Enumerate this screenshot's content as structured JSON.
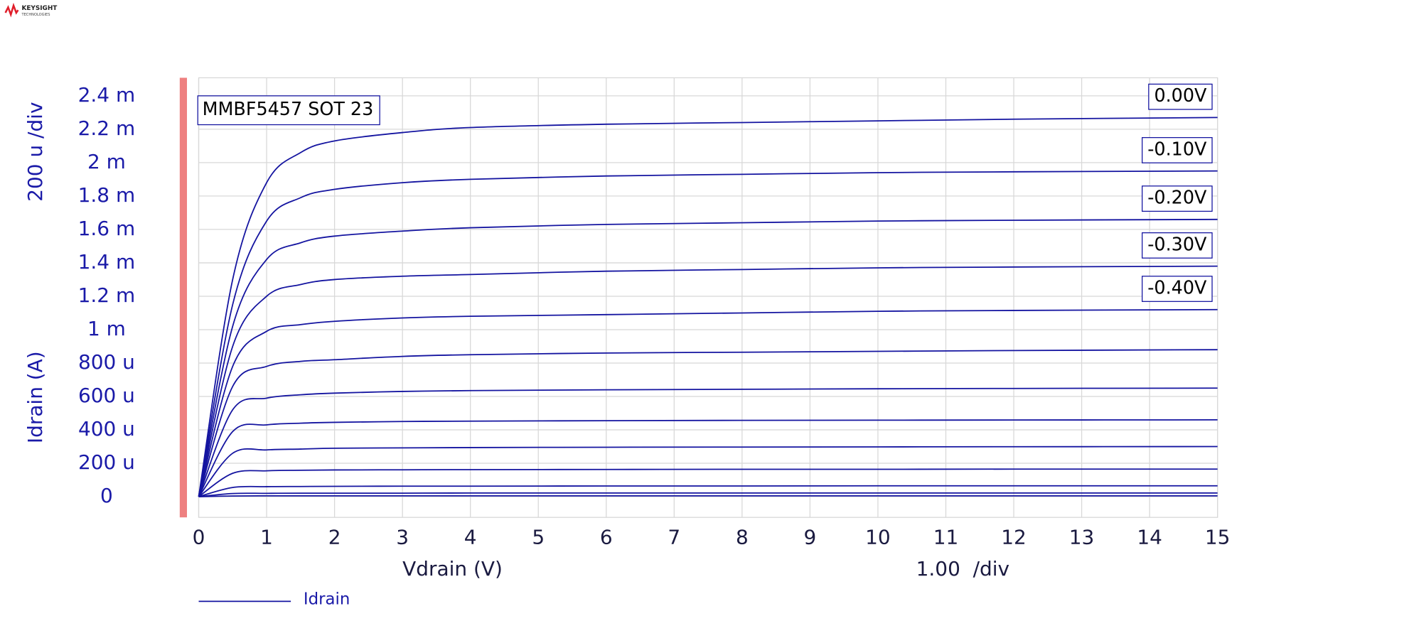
{
  "logo": {
    "name": "KEYSIGHT",
    "sub": "TECHNOLOGIES"
  },
  "chart_data": {
    "type": "line",
    "title": "MMBF5457 SOT 23",
    "x_label": "Vdrain (V)",
    "x_scale_label": "1.00  /div",
    "y_label": "Idrain (A)",
    "y_scale_label": "200 u /div",
    "legend": {
      "label": "Idrain",
      "color": "#1414a0"
    },
    "grid": true,
    "x": [
      0,
      0.5,
      1,
      1.5,
      2,
      3,
      4,
      6,
      8,
      10,
      12,
      15
    ],
    "xlim": [
      0,
      15
    ],
    "xticks": [
      0,
      1,
      2,
      3,
      4,
      5,
      6,
      7,
      8,
      9,
      10,
      11,
      12,
      13,
      14,
      15
    ],
    "ylim": [
      -0.000124,
      0.002508
    ],
    "yticks": [
      {
        "value": 0,
        "label": "0"
      },
      {
        "value": 0.0002,
        "label": "200 u"
      },
      {
        "value": 0.0004,
        "label": "400 u"
      },
      {
        "value": 0.0006,
        "label": "600 u"
      },
      {
        "value": 0.0008,
        "label": "800 u"
      },
      {
        "value": 0.001,
        "label": "1 m"
      },
      {
        "value": 0.0012,
        "label": "1.2 m"
      },
      {
        "value": 0.0014,
        "label": "1.4 m"
      },
      {
        "value": 0.0016,
        "label": "1.6 m"
      },
      {
        "value": 0.0018,
        "label": "1.8 m"
      },
      {
        "value": 0.002,
        "label": "2 m"
      },
      {
        "value": 0.0022,
        "label": "2.2 m"
      },
      {
        "value": 0.0024,
        "label": "2.4 m"
      }
    ],
    "series": [
      {
        "label": "0.00V",
        "color": "#1414a0",
        "values": [
          0,
          0.0013,
          0.00188,
          0.00206,
          0.00213,
          0.00218,
          0.00221,
          0.00223,
          0.00224,
          0.00225,
          0.00226,
          0.00227
        ]
      },
      {
        "label": "-0.10V",
        "color": "#1414a0",
        "values": [
          0,
          0.00115,
          0.00165,
          0.00179,
          0.00184,
          0.00188,
          0.0019,
          0.00192,
          0.00193,
          0.00194,
          0.001945,
          0.00195
        ]
      },
      {
        "label": "-0.20V",
        "color": "#1414a0",
        "values": [
          0,
          0.00102,
          0.00142,
          0.00152,
          0.00156,
          0.00159,
          0.00161,
          0.00163,
          0.00164,
          0.00165,
          0.001655,
          0.00166
        ]
      },
      {
        "label": "-0.30V",
        "color": "#1414a0",
        "values": [
          0,
          0.0009,
          0.0012,
          0.00127,
          0.0013,
          0.00132,
          0.00133,
          0.00135,
          0.00136,
          0.00137,
          0.001375,
          0.00138
        ]
      },
      {
        "label": "-0.40V",
        "color": "#1414a0",
        "values": [
          0,
          0.00078,
          0.00099,
          0.00103,
          0.00105,
          0.00107,
          0.00108,
          0.00109,
          0.0011,
          0.00111,
          0.001115,
          0.00112
        ]
      },
      {
        "color": "#1414a0",
        "values": [
          0,
          0.00066,
          0.00078,
          0.00081,
          0.00082,
          0.00084,
          0.00085,
          0.00086,
          0.000865,
          0.00087,
          0.000875,
          0.00088
        ]
      },
      {
        "color": "#1414a0",
        "values": [
          0,
          0.00052,
          0.00059,
          0.00061,
          0.00062,
          0.00063,
          0.000635,
          0.00064,
          0.000643,
          0.000646,
          0.000648,
          0.00065
        ]
      },
      {
        "color": "#1414a0",
        "values": [
          0,
          0.00039,
          0.00043,
          0.00044,
          0.000445,
          0.00045,
          0.000452,
          0.000455,
          0.000457,
          0.000458,
          0.000459,
          0.00046
        ]
      },
      {
        "color": "#1414a0",
        "values": [
          0,
          0.00026,
          0.00028,
          0.000285,
          0.00029,
          0.000292,
          0.000294,
          0.000296,
          0.000297,
          0.000298,
          0.000299,
          0.0003
        ]
      },
      {
        "color": "#1414a0",
        "values": [
          0,
          0.00014,
          0.000155,
          0.000158,
          0.00016,
          0.000161,
          0.000162,
          0.000163,
          0.000164,
          0.000164,
          0.000165,
          0.000165
        ]
      },
      {
        "color": "#1414a0",
        "values": [
          0,
          5.5e-05,
          6e-05,
          6.1e-05,
          6.2e-05,
          6.3e-05,
          6.3e-05,
          6.4e-05,
          6.4e-05,
          6.5e-05,
          6.5e-05,
          6.5e-05
        ]
      },
      {
        "color": "#1414a0",
        "values": [
          0,
          1.9e-05,
          2e-05,
          2.1e-05,
          2.1e-05,
          2.1e-05,
          2.2e-05,
          2.2e-05,
          2.2e-05,
          2.2e-05,
          2.2e-05,
          2.2e-05
        ]
      },
      {
        "color": "#1414a0",
        "values": [
          0,
          4e-06,
          5e-06,
          5e-06,
          5e-06,
          5e-06,
          5e-06,
          5e-06,
          5e-06,
          5e-06,
          5e-06,
          5e-06
        ]
      }
    ]
  }
}
